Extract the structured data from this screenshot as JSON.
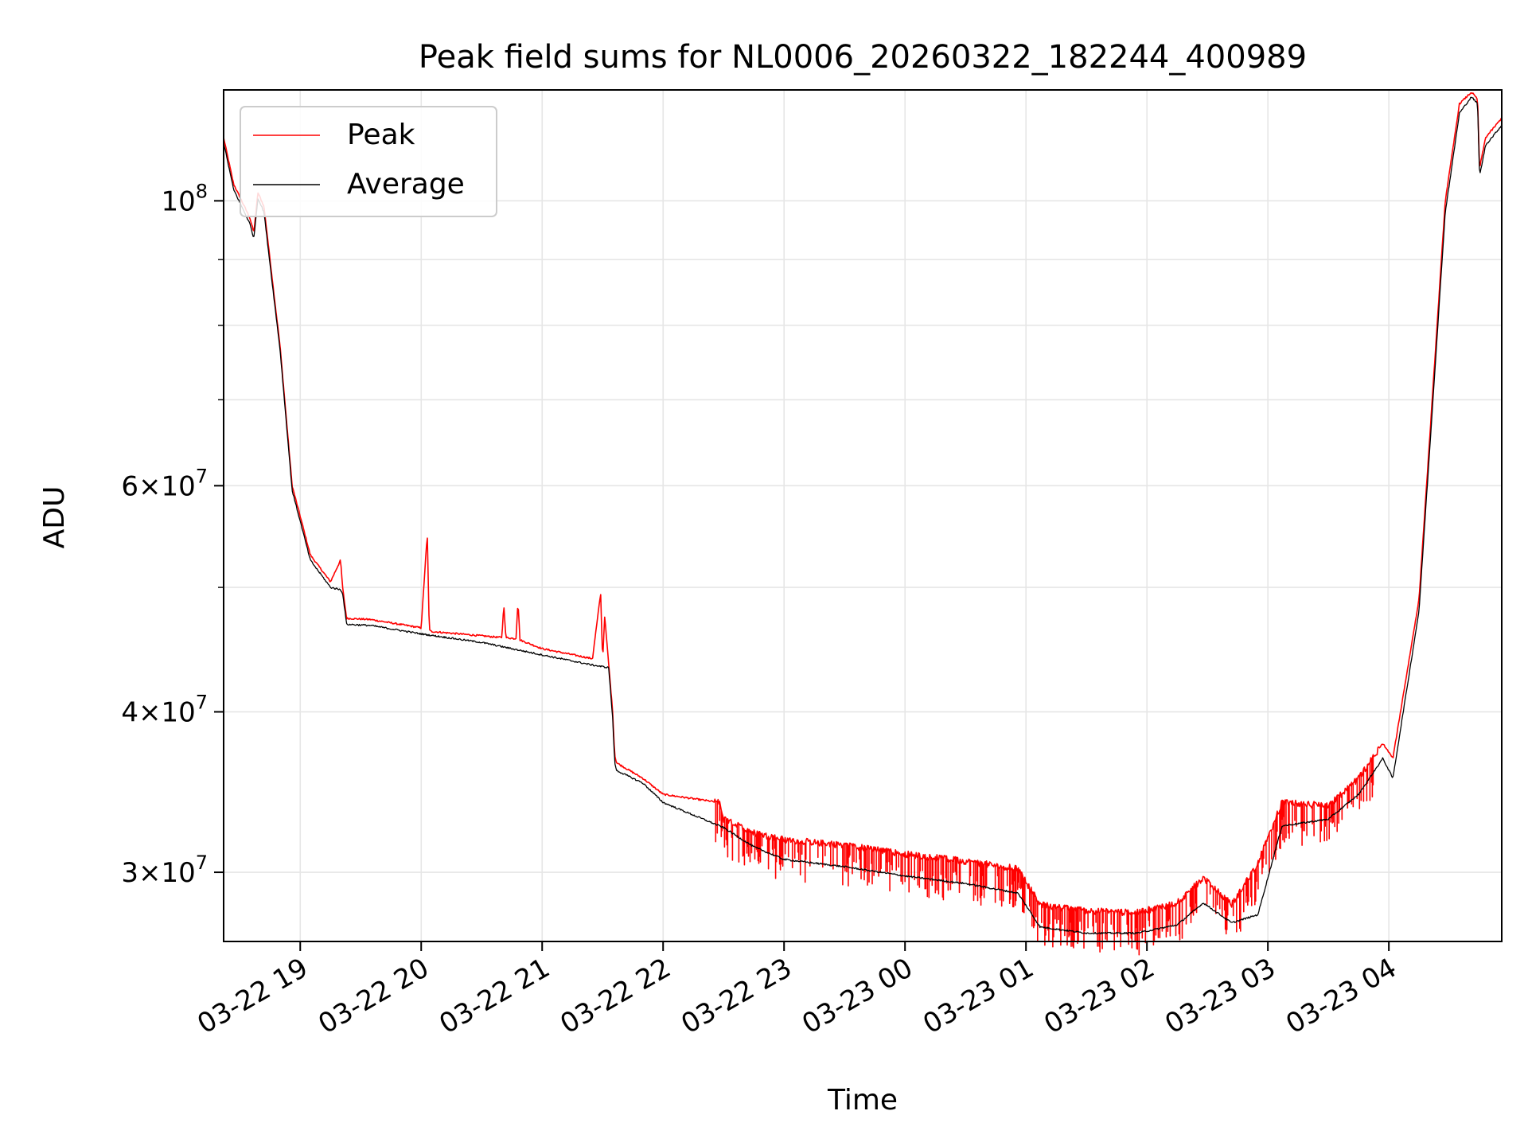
{
  "chart_data": {
    "type": "line",
    "title": "Peak field sums for NL0006_20260322_182244_400989",
    "xlabel": "Time",
    "ylabel": "ADU",
    "yscale": "log",
    "ylim": [
      26500000,
      122000000
    ],
    "xlim": [
      "2026-03-22 18:22",
      "2026-03-23 04:56"
    ],
    "grid": true,
    "legend_position": "top-left",
    "x_ticks": [
      "03-22 19",
      "03-22 20",
      "03-22 21",
      "03-22 22",
      "03-22 23",
      "03-23 00",
      "03-23 01",
      "03-23 02",
      "03-23 03",
      "03-23 04"
    ],
    "y_ticks": [
      {
        "value": 30000000,
        "mantissa": "3",
        "exponent": "7"
      },
      {
        "value": 40000000,
        "mantissa": "4",
        "exponent": "7"
      },
      {
        "value": 60000000,
        "mantissa": "6",
        "exponent": "7"
      },
      {
        "value": 100000000,
        "mantissa": "",
        "exponent": "8"
      }
    ],
    "series": [
      {
        "name": "Peak",
        "color": "#ff0000",
        "x": [
          "2026-03-22 18:22",
          "2026-03-22 18:27",
          "2026-03-22 18:35",
          "2026-03-22 18:37",
          "2026-03-22 18:39",
          "2026-03-22 18:42",
          "2026-03-22 18:50",
          "2026-03-22 18:56",
          "2026-03-22 19:05",
          "2026-03-22 19:15",
          "2026-03-22 19:20",
          "2026-03-22 19:21",
          "2026-03-22 19:23",
          "2026-03-22 19:35",
          "2026-03-22 20:00",
          "2026-03-22 20:03",
          "2026-03-22 20:04",
          "2026-03-22 20:05",
          "2026-03-22 20:40",
          "2026-03-22 20:41",
          "2026-03-22 20:42",
          "2026-03-22 20:47",
          "2026-03-22 20:48",
          "2026-03-22 20:49",
          "2026-03-22 21:00",
          "2026-03-22 21:25",
          "2026-03-22 21:29",
          "2026-03-22 21:30",
          "2026-03-22 21:31",
          "2026-03-22 21:35",
          "2026-03-22 21:36",
          "2026-03-22 21:37",
          "2026-03-22 21:50",
          "2026-03-22 22:00",
          "2026-03-22 22:28",
          "2026-03-22 22:30",
          "2026-03-22 22:45",
          "2026-03-22 23:00",
          "2026-03-22 23:30",
          "2026-03-23 00:00",
          "2026-03-23 00:30",
          "2026-03-23 00:56",
          "2026-03-23 01:07",
          "2026-03-23 01:30",
          "2026-03-23 01:55",
          "2026-03-23 02:15",
          "2026-03-23 02:28",
          "2026-03-23 02:42",
          "2026-03-23 02:55",
          "2026-03-23 03:07",
          "2026-03-23 03:30",
          "2026-03-23 03:45",
          "2026-03-23 03:57",
          "2026-03-23 04:02",
          "2026-03-23 04:15",
          "2026-03-23 04:28",
          "2026-03-23 04:35",
          "2026-03-23 04:41",
          "2026-03-23 04:44",
          "2026-03-23 04:45",
          "2026-03-23 04:48",
          "2026-03-23 04:56"
        ],
        "y": [
          112000000,
          103000000,
          97000000,
          94500000,
          101500000,
          99000000,
          77000000,
          60000000,
          53000000,
          50500000,
          52500000,
          50000000,
          47300000,
          47200000,
          46500000,
          55000000,
          46300000,
          46200000,
          45700000,
          48500000,
          45700000,
          45600000,
          48800000,
          45500000,
          44800000,
          44000000,
          49500000,
          43800000,
          47500000,
          40000000,
          37000000,
          36500000,
          35500000,
          34500000,
          34000000,
          33000000,
          32200000,
          31800000,
          31500000,
          31000000,
          30600000,
          30200000,
          28300000,
          28000000,
          27900000,
          28400000,
          29700000,
          28300000,
          30500000,
          34000000,
          33800000,
          35500000,
          37800000,
          36800000,
          49000000,
          100000000,
          119000000,
          121500000,
          120000000,
          106000000,
          112000000,
          116000000
        ]
      },
      {
        "name": "Average",
        "color": "#000000",
        "x": [
          "2026-03-22 18:22",
          "2026-03-22 18:27",
          "2026-03-22 18:35",
          "2026-03-22 18:37",
          "2026-03-22 18:39",
          "2026-03-22 18:42",
          "2026-03-22 18:50",
          "2026-03-22 18:56",
          "2026-03-22 19:05",
          "2026-03-22 19:15",
          "2026-03-22 19:20",
          "2026-03-22 19:21",
          "2026-03-22 19:23",
          "2026-03-22 19:35",
          "2026-03-22 20:00",
          "2026-03-22 20:30",
          "2026-03-22 21:00",
          "2026-03-22 21:25",
          "2026-03-22 21:33",
          "2026-03-22 21:35",
          "2026-03-22 21:36",
          "2026-03-22 21:37",
          "2026-03-22 21:50",
          "2026-03-22 22:00",
          "2026-03-22 22:30",
          "2026-03-22 22:45",
          "2026-03-22 23:00",
          "2026-03-22 23:30",
          "2026-03-23 00:00",
          "2026-03-23 00:30",
          "2026-03-23 00:56",
          "2026-03-23 01:07",
          "2026-03-23 01:30",
          "2026-03-23 01:55",
          "2026-03-23 02:15",
          "2026-03-23 02:28",
          "2026-03-23 02:42",
          "2026-03-23 02:55",
          "2026-03-23 03:07",
          "2026-03-23 03:30",
          "2026-03-23 03:45",
          "2026-03-23 03:57",
          "2026-03-23 04:02",
          "2026-03-23 04:15",
          "2026-03-23 04:28",
          "2026-03-23 04:35",
          "2026-03-23 04:41",
          "2026-03-23 04:44",
          "2026-03-23 04:45",
          "2026-03-23 04:48",
          "2026-03-23 04:56"
        ],
        "y": [
          111000000,
          102000000,
          96000000,
          93500000,
          100500000,
          98000000,
          76500000,
          59500000,
          52500000,
          50000000,
          49800000,
          49500000,
          46800000,
          46700000,
          46000000,
          45300000,
          44300000,
          43500000,
          43300000,
          39500000,
          36500000,
          36000000,
          35200000,
          34000000,
          32500000,
          31400000,
          30700000,
          30300000,
          29800000,
          29400000,
          28900000,
          27200000,
          26900000,
          26900000,
          27300000,
          28400000,
          27400000,
          27800000,
          32600000,
          33000000,
          34500000,
          36800000,
          35500000,
          48000000,
          98000000,
          117000000,
          120500000,
          119000000,
          104500000,
          110500000,
          114500000
        ]
      }
    ]
  }
}
